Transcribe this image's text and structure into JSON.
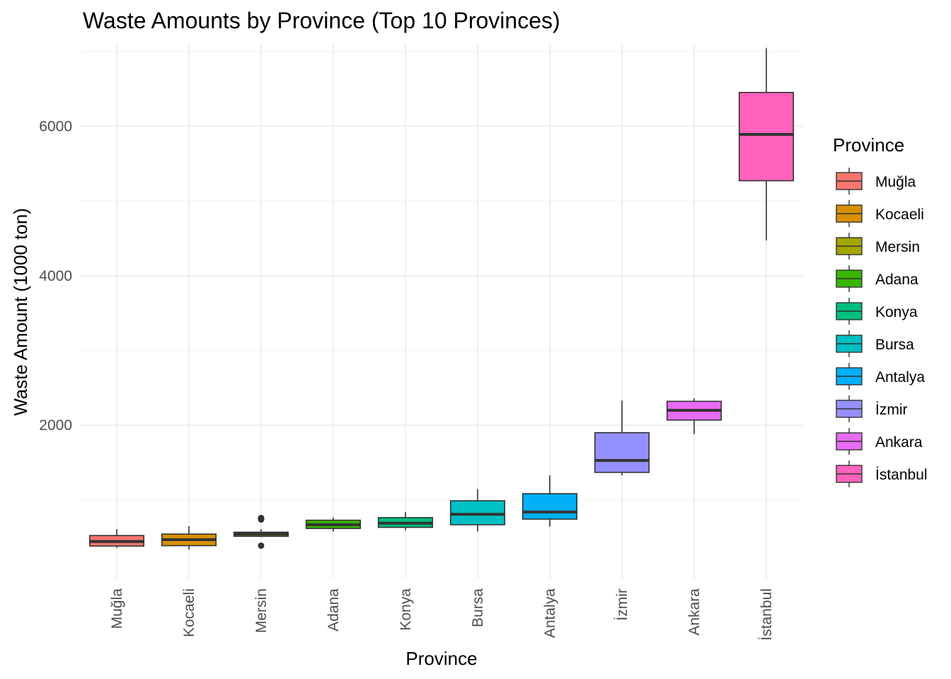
{
  "chart_data": {
    "type": "boxplot",
    "title": "Waste Amounts by Province (Top 10 Provinces)",
    "xlabel": "Province",
    "ylabel": "Waste Amount (1000 ton)",
    "ylim": [
      -50,
      7100
    ],
    "yticks": [
      2000,
      4000,
      6000
    ],
    "grid": true,
    "legend": {
      "title": "Province",
      "position": "right"
    },
    "categories": [
      "Muğla",
      "Kocaeli",
      "Mersin",
      "Adana",
      "Konya",
      "Bursa",
      "Antalya",
      "İzmir",
      "Ankara",
      "İstanbul"
    ],
    "colors": [
      "#F8766D",
      "#D89000",
      "#A3A500",
      "#39B600",
      "#00BF7D",
      "#00BFC4",
      "#00B0F6",
      "#9590FF",
      "#E76BF3",
      "#FF62BC"
    ],
    "series": [
      {
        "name": "Muğla",
        "min": 360,
        "q1": 385,
        "median": 445,
        "q3": 525,
        "max": 610,
        "outliers": []
      },
      {
        "name": "Kocaeli",
        "min": 340,
        "q1": 390,
        "median": 470,
        "q3": 545,
        "max": 650,
        "outliers": []
      },
      {
        "name": "Mersin",
        "min": 505,
        "q1": 515,
        "median": 545,
        "q3": 570,
        "max": 610,
        "outliers": [
          390,
          740,
          750,
          760
        ]
      },
      {
        "name": "Adana",
        "min": 575,
        "q1": 620,
        "median": 670,
        "q3": 730,
        "max": 765,
        "outliers": []
      },
      {
        "name": "Konya",
        "min": 595,
        "q1": 635,
        "median": 690,
        "q3": 765,
        "max": 840,
        "outliers": []
      },
      {
        "name": "Bursa",
        "min": 580,
        "q1": 670,
        "median": 810,
        "q3": 990,
        "max": 1145,
        "outliers": []
      },
      {
        "name": "Antalya",
        "min": 645,
        "q1": 745,
        "median": 840,
        "q3": 1085,
        "max": 1330,
        "outliers": []
      },
      {
        "name": "İzmir",
        "min": 1330,
        "q1": 1370,
        "median": 1530,
        "q3": 1900,
        "max": 2330,
        "outliers": []
      },
      {
        "name": "Ankara",
        "min": 1880,
        "q1": 2070,
        "median": 2200,
        "q3": 2320,
        "max": 2360,
        "outliers": []
      },
      {
        "name": "İstanbul",
        "min": 4470,
        "q1": 5270,
        "median": 5890,
        "q3": 6450,
        "max": 7040,
        "outliers": []
      }
    ]
  }
}
